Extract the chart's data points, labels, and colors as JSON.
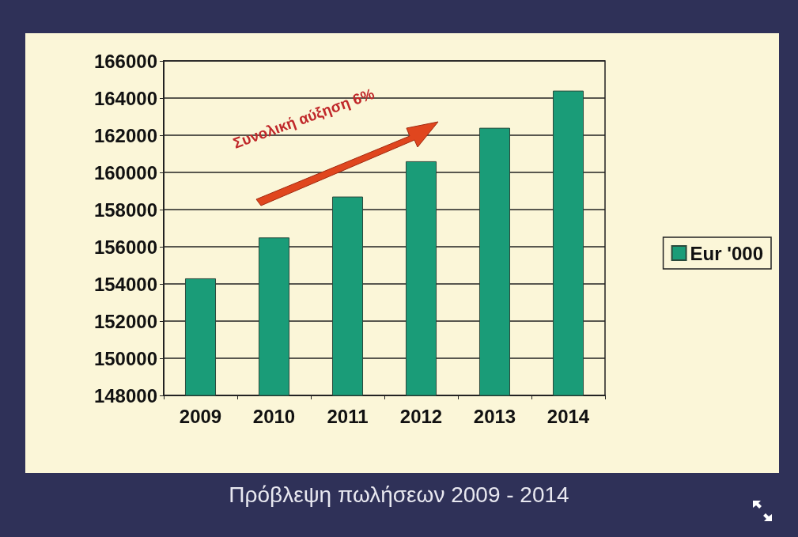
{
  "chart_data": {
    "type": "bar",
    "title": "Πρόβλεψη πωλήσεων 2009 - 2014",
    "categories": [
      "2009",
      "2010",
      "2011",
      "2012",
      "2013",
      "2014"
    ],
    "series": [
      {
        "name": "Eur '000",
        "color": "#1a9c78",
        "values": [
          154300,
          156500,
          158700,
          160600,
          162400,
          164400
        ]
      }
    ],
    "ylim": [
      148000,
      166000
    ],
    "yticks": [
      148000,
      150000,
      152000,
      154000,
      156000,
      158000,
      160000,
      162000,
      164000,
      166000
    ],
    "grid": "y",
    "legend": "right",
    "annotations": [
      "Συνολική αύξηση 6%"
    ]
  }
}
